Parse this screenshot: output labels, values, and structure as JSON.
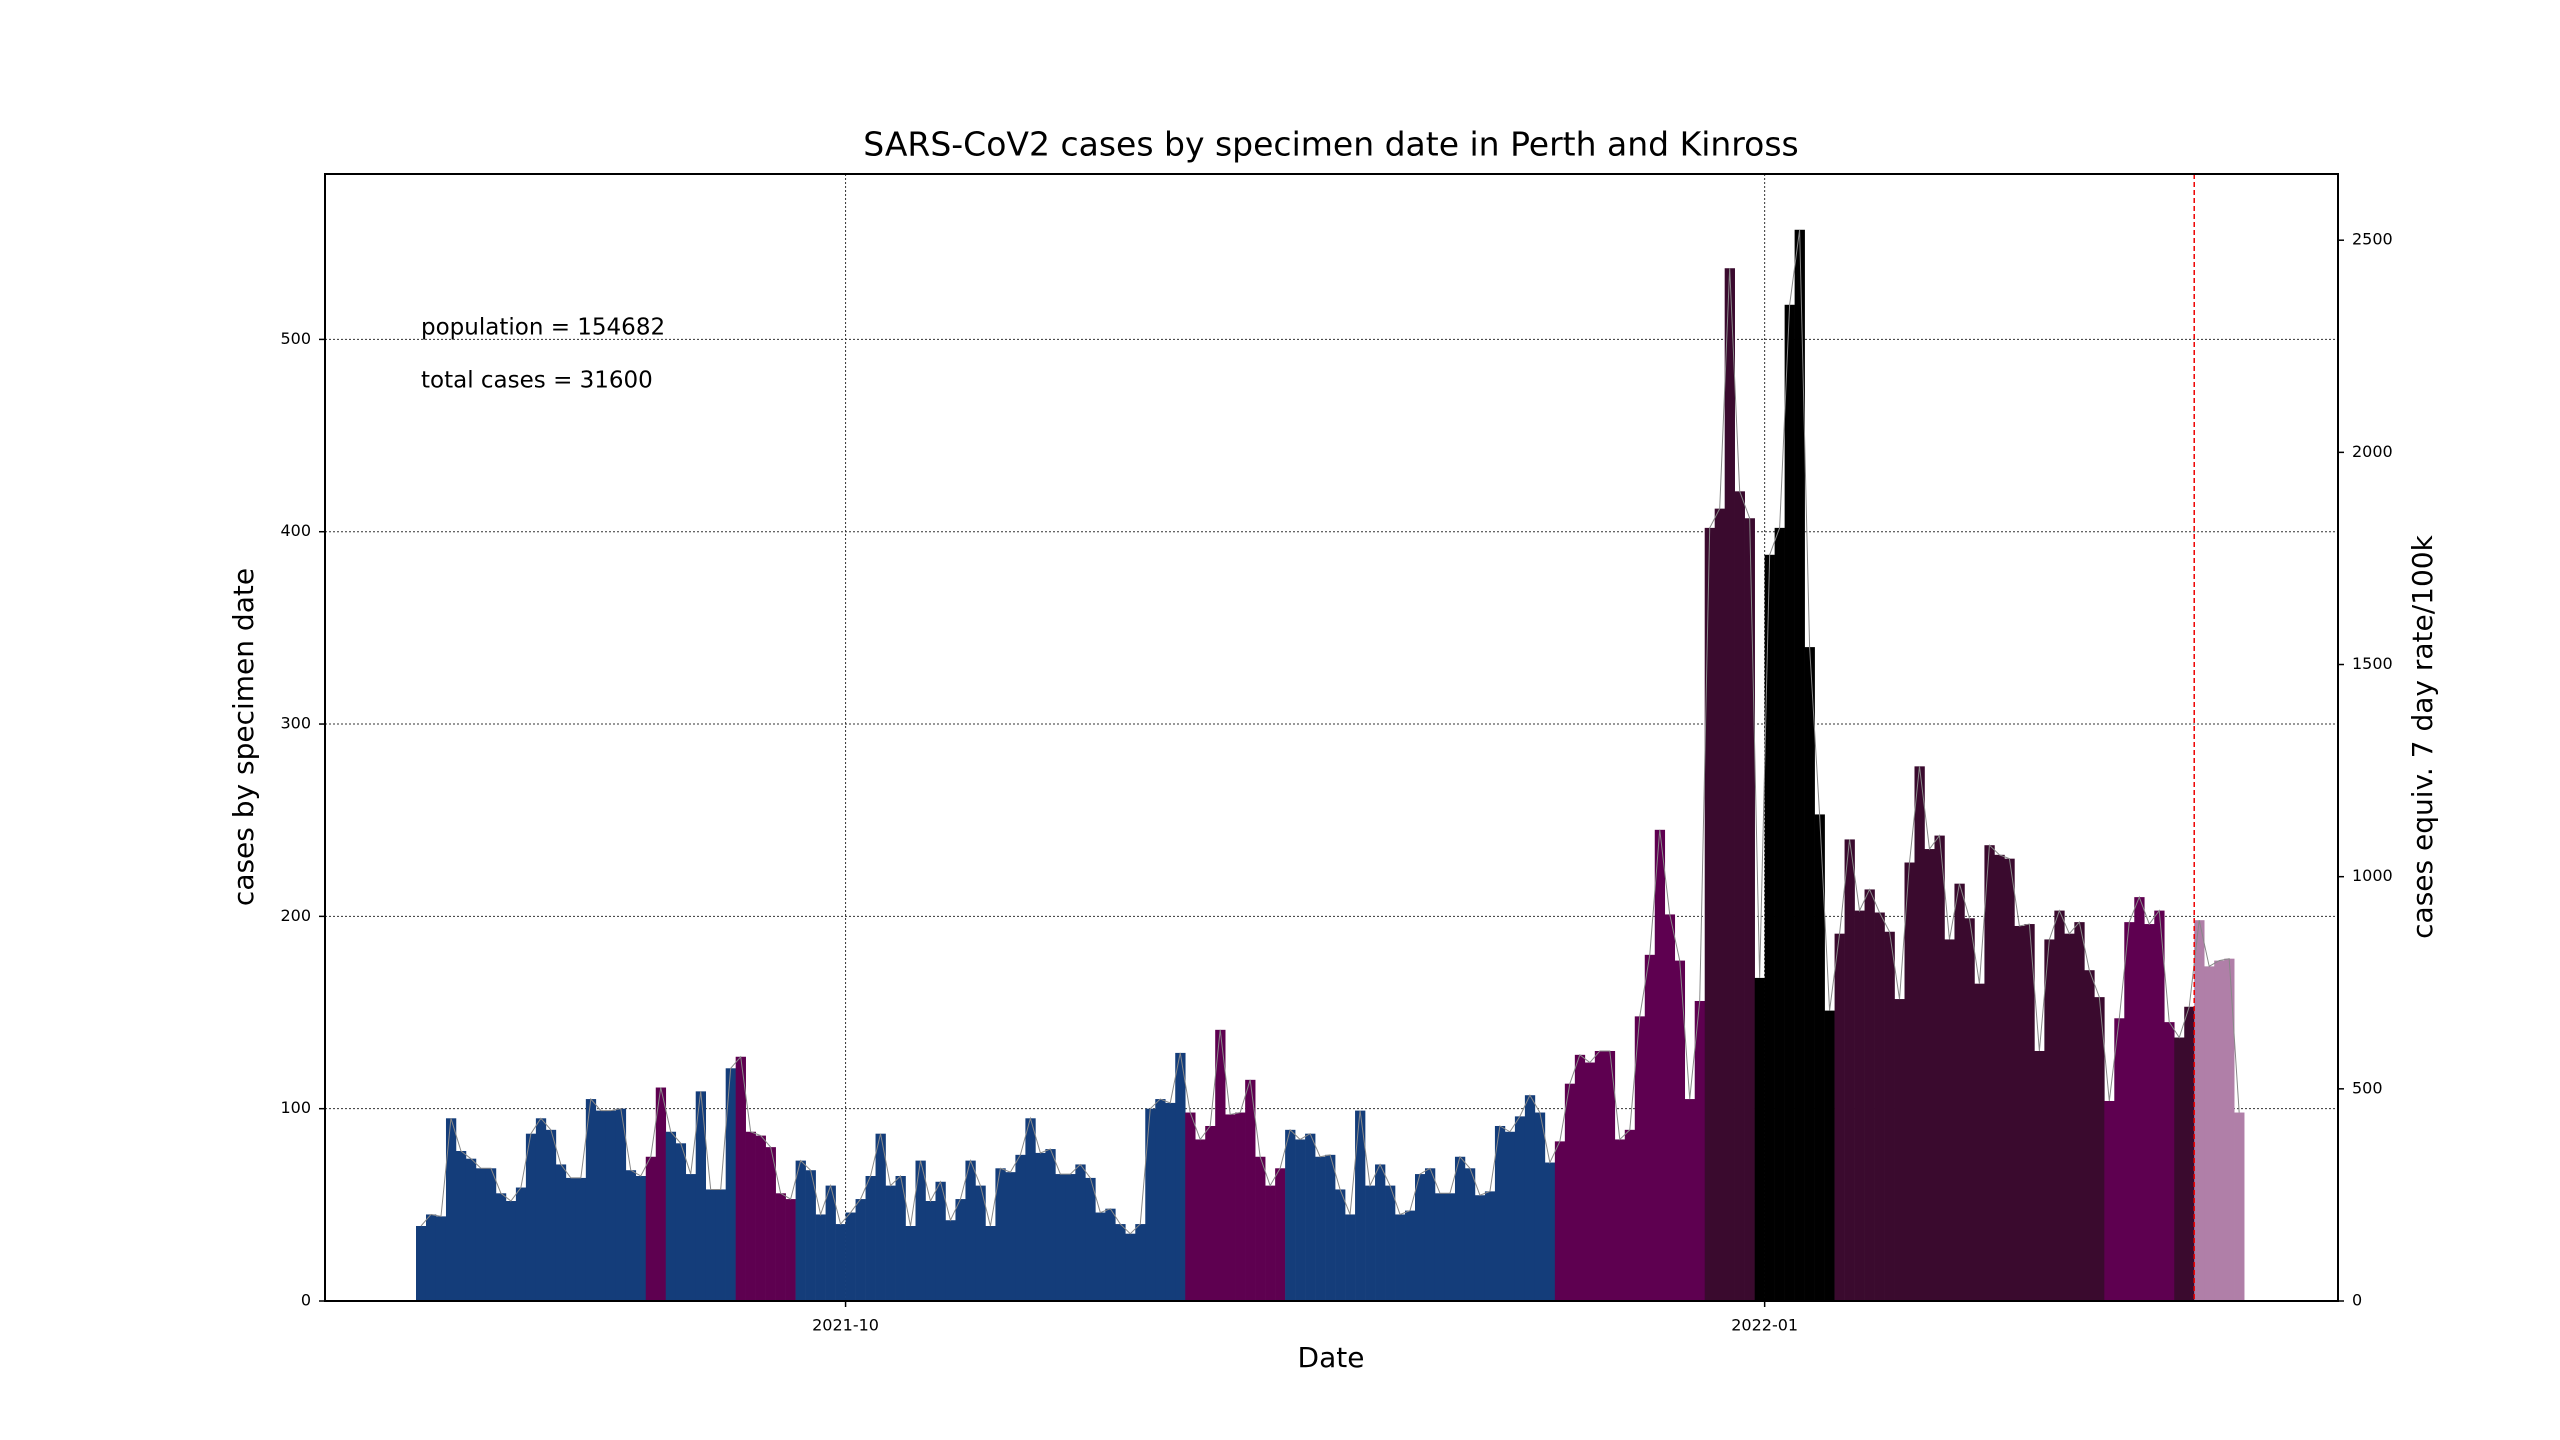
{
  "chart_data": {
    "type": "bar",
    "title": "SARS-CoV2 cases by specimen date in Perth and Kinross",
    "x_label": "Date",
    "y_label": "cases by specimen date",
    "y2_label": "cases equiv. 7 day rate/100k",
    "annotations": [
      "population = 154682",
      "total cases = 31600"
    ],
    "categories": [
      null,
      null,
      null,
      null,
      null,
      null,
      null,
      null,
      null,
      null,
      null,
      null,
      null,
      null,
      null,
      null,
      null,
      null,
      null,
      null,
      null,
      null,
      null,
      null,
      null,
      null,
      null,
      null,
      null,
      null,
      null,
      null,
      null,
      null,
      null,
      null,
      null,
      null,
      null,
      null,
      null,
      null,
      null,
      "2021-10",
      null,
      null,
      null,
      null,
      null,
      null,
      null,
      null,
      null,
      null,
      null,
      null,
      null,
      null,
      null,
      null,
      null,
      null,
      null,
      null,
      null,
      null,
      null,
      null,
      null,
      null,
      null,
      null,
      null,
      null,
      null,
      null,
      null,
      null,
      null,
      null,
      null,
      null,
      null,
      null,
      null,
      null,
      null,
      null,
      null,
      null,
      null,
      null,
      null,
      null,
      null,
      null,
      null,
      null,
      null,
      null,
      null,
      null,
      null,
      null,
      null,
      null,
      null,
      null,
      null,
      null,
      null,
      null,
      null,
      null,
      null,
      null,
      null,
      null,
      null,
      null,
      null,
      null,
      null,
      null,
      null,
      null,
      null,
      null,
      null,
      null,
      null,
      null,
      null,
      null,
      null,
      "2022-01",
      null,
      null,
      null,
      null,
      null,
      null,
      null,
      null,
      null,
      null,
      null,
      null,
      null,
      null,
      null,
      null,
      null,
      null,
      null,
      null,
      null,
      null,
      null,
      null,
      null,
      null,
      null,
      null,
      null,
      null,
      null,
      null,
      null,
      null,
      null,
      null,
      null,
      null,
      null,
      null,
      null,
      null,
      null,
      null,
      null,
      null,
      null
    ],
    "values": [
      39,
      45,
      44,
      95,
      78,
      74,
      69,
      69,
      56,
      52,
      59,
      87,
      95,
      89,
      71,
      64,
      64,
      105,
      99,
      99,
      100,
      68,
      65,
      75,
      111,
      88,
      82,
      66,
      109,
      58,
      58,
      121,
      127,
      88,
      86,
      80,
      56,
      53,
      73,
      68,
      45,
      60,
      40,
      46,
      53,
      65,
      87,
      60,
      65,
      39,
      73,
      52,
      62,
      42,
      53,
      73,
      60,
      39,
      69,
      67,
      76,
      95,
      77,
      79,
      66,
      66,
      71,
      64,
      46,
      48,
      40,
      35,
      40,
      100,
      105,
      103,
      129,
      98,
      84,
      91,
      141,
      97,
      98,
      115,
      75,
      60,
      69,
      89,
      84,
      87,
      75,
      76,
      58,
      45,
      99,
      60,
      71,
      60,
      45,
      47,
      66,
      69,
      56,
      56,
      75,
      69,
      55,
      57,
      91,
      88,
      96,
      107,
      98,
      72,
      83,
      113,
      128,
      124,
      130,
      130,
      84,
      89,
      148,
      180,
      245,
      201,
      177,
      105,
      156,
      402,
      412,
      537,
      421,
      407,
      168,
      388,
      402,
      518,
      557,
      340,
      253,
      151,
      191,
      240,
      203,
      214,
      202,
      192,
      157,
      228,
      278,
      235,
      242,
      188,
      217,
      199,
      165,
      237,
      232,
      230,
      195,
      196,
      130,
      188,
      203,
      191,
      197,
      172,
      158,
      104,
      147,
      197,
      210,
      196,
      203,
      145,
      137,
      153,
      198,
      174,
      177,
      178,
      98
    ],
    "colors": [
      "#143d7a",
      "#143d7a",
      "#143d7a",
      "#143d7a",
      "#143d7a",
      "#143d7a",
      "#143d7a",
      "#143d7a",
      "#143d7a",
      "#143d7a",
      "#143d7a",
      "#143d7a",
      "#143d7a",
      "#143d7a",
      "#143d7a",
      "#143d7a",
      "#143d7a",
      "#143d7a",
      "#143d7a",
      "#143d7a",
      "#143d7a",
      "#143d7a",
      "#143d7a",
      "#5e0050",
      "#5e0050",
      "#143d7a",
      "#143d7a",
      "#143d7a",
      "#143d7a",
      "#143d7a",
      "#143d7a",
      "#143d7a",
      "#5e0050",
      "#5e0050",
      "#5e0050",
      "#5e0050",
      "#5e0050",
      "#5e0050",
      "#143d7a",
      "#143d7a",
      "#143d7a",
      "#143d7a",
      "#143d7a",
      "#143d7a",
      "#143d7a",
      "#143d7a",
      "#143d7a",
      "#143d7a",
      "#143d7a",
      "#143d7a",
      "#143d7a",
      "#143d7a",
      "#143d7a",
      "#143d7a",
      "#143d7a",
      "#143d7a",
      "#143d7a",
      "#143d7a",
      "#143d7a",
      "#143d7a",
      "#143d7a",
      "#143d7a",
      "#143d7a",
      "#143d7a",
      "#143d7a",
      "#143d7a",
      "#143d7a",
      "#143d7a",
      "#143d7a",
      "#143d7a",
      "#143d7a",
      "#143d7a",
      "#143d7a",
      "#143d7a",
      "#143d7a",
      "#143d7a",
      "#143d7a",
      "#5e0050",
      "#5e0050",
      "#5e0050",
      "#5e0050",
      "#5e0050",
      "#5e0050",
      "#5e0050",
      "#5e0050",
      "#5e0050",
      "#5e0050",
      "#143d7a",
      "#143d7a",
      "#143d7a",
      "#143d7a",
      "#143d7a",
      "#143d7a",
      "#143d7a",
      "#143d7a",
      "#143d7a",
      "#143d7a",
      "#143d7a",
      "#143d7a",
      "#143d7a",
      "#143d7a",
      "#143d7a",
      "#143d7a",
      "#143d7a",
      "#143d7a",
      "#143d7a",
      "#143d7a",
      "#143d7a",
      "#143d7a",
      "#143d7a",
      "#143d7a",
      "#143d7a",
      "#143d7a",
      "#143d7a",
      "#5e0050",
      "#5e0050",
      "#5e0050",
      "#5e0050",
      "#5e0050",
      "#5e0050",
      "#5e0050",
      "#5e0050",
      "#5e0050",
      "#5e0050",
      "#5e0050",
      "#5e0050",
      "#5e0050",
      "#5e0050",
      "#5e0050",
      "#3a0a2e",
      "#3a0a2e",
      "#3a0a2e",
      "#3a0a2e",
      "#3a0a2e",
      "#000000",
      "#000000",
      "#000000",
      "#000000",
      "#000000",
      "#000000",
      "#000000",
      "#000000",
      "#3a0a2e",
      "#3a0a2e",
      "#3a0a2e",
      "#3a0a2e",
      "#3a0a2e",
      "#3a0a2e",
      "#3a0a2e",
      "#3a0a2e",
      "#3a0a2e",
      "#3a0a2e",
      "#3a0a2e",
      "#3a0a2e",
      "#3a0a2e",
      "#3a0a2e",
      "#3a0a2e",
      "#3a0a2e",
      "#3a0a2e",
      "#3a0a2e",
      "#3a0a2e",
      "#3a0a2e",
      "#3a0a2e",
      "#3a0a2e",
      "#3a0a2e",
      "#3a0a2e",
      "#3a0a2e",
      "#3a0a2e",
      "#3a0a2e",
      "#5e0050",
      "#5e0050",
      "#5e0050",
      "#5e0050",
      "#5e0050",
      "#5e0050",
      "#5e0050",
      "#3a0a2e",
      "#3a0a2e",
      "#b07fa8",
      "#b07fa8",
      "#b07fa8",
      "#b07fa8",
      "#b07fa8"
    ],
    "cutoff": 178,
    "ylim": [
      0,
      586
    ],
    "yticks": [
      0,
      100,
      200,
      300,
      400,
      500
    ],
    "y2lim": [
      0,
      2656
    ],
    "y2ticks": [
      0,
      500,
      1000,
      1500,
      2000,
      2500
    ],
    "grid": true
  }
}
